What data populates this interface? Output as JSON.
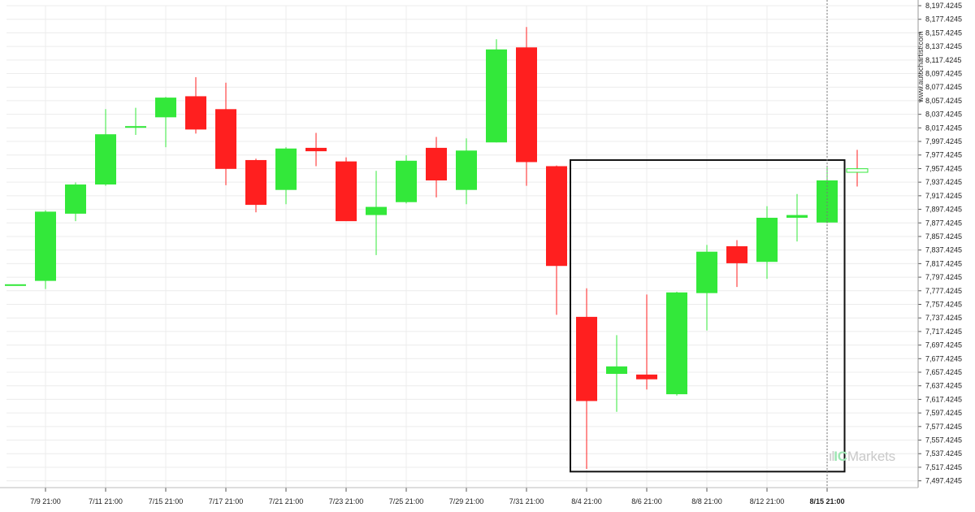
{
  "watermark": "www.autochartist.com",
  "brand": {
    "dots": ".ıl",
    "ic": "IC",
    "name": "Markets"
  },
  "colors": {
    "up": "#33e83a",
    "down": "#ff1f1f",
    "box": "#111111",
    "grid": "#ececec"
  },
  "chart_data": {
    "type": "candlestick",
    "title": "",
    "xlabel": "",
    "ylabel": "",
    "ylim": [
      7487.4245,
      8197.4245
    ],
    "ticks": [
      "8,197.4245",
      "8,177.4245",
      "8,157.4245",
      "8,137.4245",
      "8,117.4245",
      "8,097.4245",
      "8,077.4245",
      "8,057.4245",
      "8,037.4245",
      "8,017.4245",
      "7,997.4245",
      "7,977.4245",
      "7,957.4245",
      "7,937.4245",
      "7,917.4245",
      "7,897.4245",
      "7,877.4245",
      "7,857.4245",
      "7,837.4245",
      "7,817.4245",
      "7,797.4245",
      "7,777.4245",
      "7,757.4245",
      "7,737.4245",
      "7,717.4245",
      "7,697.4245",
      "7,677.4245",
      "7,657.4245",
      "7,637.4245",
      "7,617.4245",
      "7,597.4245",
      "7,577.4245",
      "7,557.4245",
      "7,537.4245",
      "7,517.4245",
      "7,497.4245"
    ],
    "x_labels": [
      {
        "label": "7/9 21:00",
        "index": 1
      },
      {
        "label": "7/11 21:00",
        "index": 3
      },
      {
        "label": "7/15 21:00",
        "index": 5
      },
      {
        "label": "7/17 21:00",
        "index": 7
      },
      {
        "label": "7/21 21:00",
        "index": 9
      },
      {
        "label": "7/23 21:00",
        "index": 11
      },
      {
        "label": "7/25 21:00",
        "index": 13
      },
      {
        "label": "7/29 21:00",
        "index": 15
      },
      {
        "label": "7/31 21:00",
        "index": 17
      },
      {
        "label": "8/4 21:00",
        "index": 19
      },
      {
        "label": "8/6 21:00",
        "index": 21
      },
      {
        "label": "8/8 21:00",
        "index": 23
      },
      {
        "label": "8/12 21:00",
        "index": 25
      },
      {
        "label": "8/15 21:00",
        "index": 27,
        "active": true
      }
    ],
    "candles": [
      {
        "o": 7787,
        "h": 7787,
        "l": 7787,
        "c": 7787
      },
      {
        "o": 7792,
        "h": 7896,
        "l": 7780,
        "c": 7894
      },
      {
        "o": 7891,
        "h": 7937,
        "l": 7880,
        "c": 7934
      },
      {
        "o": 7934,
        "h": 8045,
        "l": 7932,
        "c": 8008
      },
      {
        "o": 8020,
        "h": 8047,
        "l": 8007,
        "c": 8020
      },
      {
        "o": 8033,
        "h": 8063,
        "l": 7989,
        "c": 8062
      },
      {
        "o": 8064,
        "h": 8092,
        "l": 8009,
        "c": 8015
      },
      {
        "o": 8045,
        "h": 8084,
        "l": 7933,
        "c": 7957
      },
      {
        "o": 7970,
        "h": 7972,
        "l": 7893,
        "c": 7904
      },
      {
        "o": 7926,
        "h": 7989,
        "l": 7905,
        "c": 7987
      },
      {
        "o": 7988,
        "h": 8010,
        "l": 7961,
        "c": 7983
      },
      {
        "o": 7968,
        "h": 7974,
        "l": 7882,
        "c": 7880
      },
      {
        "o": 7889,
        "h": 7954,
        "l": 7830,
        "c": 7901
      },
      {
        "o": 7908,
        "h": 7977,
        "l": 7906,
        "c": 7969
      },
      {
        "o": 7988,
        "h": 8004,
        "l": 7915,
        "c": 7940
      },
      {
        "o": 7926,
        "h": 8002,
        "l": 7905,
        "c": 7984
      },
      {
        "o": 7996,
        "h": 8148,
        "l": 7996,
        "c": 8133
      },
      {
        "o": 8136,
        "h": 8166,
        "l": 7932,
        "c": 7967
      },
      {
        "o": 7961,
        "h": 7962,
        "l": 7742,
        "c": 7814
      },
      {
        "o": 7739,
        "h": 7781,
        "l": 7515,
        "c": 7615
      },
      {
        "o": 7655,
        "h": 7712,
        "l": 7599,
        "c": 7666
      },
      {
        "o": 7654,
        "h": 7772,
        "l": 7632,
        "c": 7647
      },
      {
        "o": 7625,
        "h": 7776,
        "l": 7623,
        "c": 7775
      },
      {
        "o": 7774,
        "h": 7845,
        "l": 7719,
        "c": 7835
      },
      {
        "o": 7843,
        "h": 7852,
        "l": 7783,
        "c": 7818
      },
      {
        "o": 7820,
        "h": 7902,
        "l": 7795,
        "c": 7885
      },
      {
        "o": 7885,
        "h": 7920,
        "l": 7850,
        "c": 7889
      },
      {
        "o": 7878,
        "h": 7959,
        "l": 7877,
        "c": 7940
      },
      {
        "o": 7956,
        "h": 7985,
        "l": 7931,
        "c": 7952
      }
    ],
    "box": {
      "x_start_index": 19,
      "x_end_index": 27.5,
      "y_top": 7970,
      "y_bottom": 7511
    },
    "current_marker_index": 27
  }
}
